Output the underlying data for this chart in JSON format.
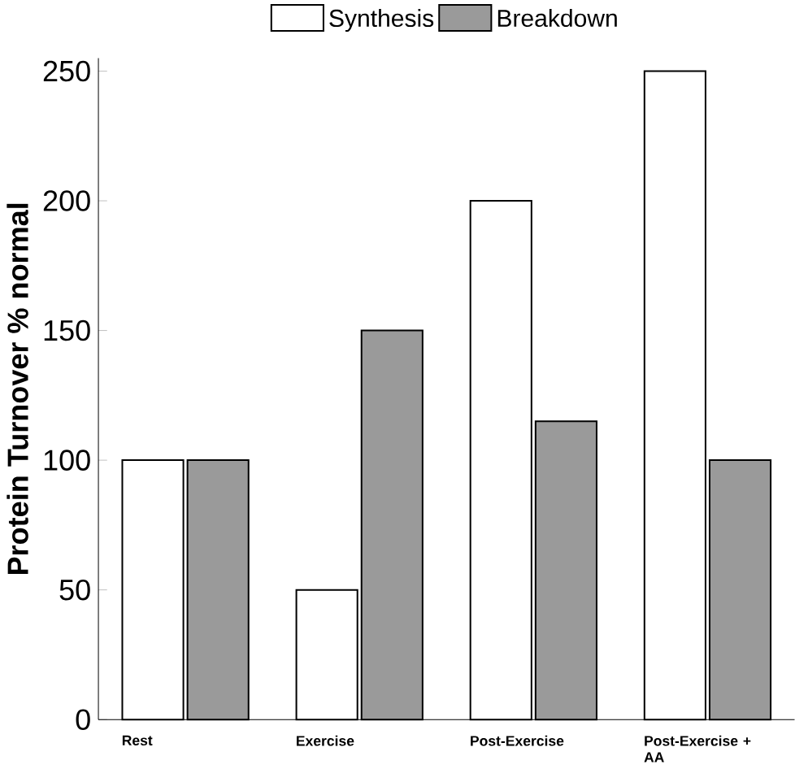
{
  "chart_data": {
    "type": "bar",
    "ylabel": "Protein Turnover % normal",
    "categories": [
      "Rest",
      "Exercise",
      "Post-Exercise",
      "Post-Exercise + AA"
    ],
    "series": [
      {
        "name": "Synthesis",
        "color": "#ffffff",
        "values": [
          100,
          50,
          200,
          250
        ]
      },
      {
        "name": "Breakdown",
        "color": "#9a9a9a",
        "values": [
          100,
          150,
          115,
          100
        ]
      }
    ],
    "ylim": [
      0,
      255
    ],
    "yticks": [
      0,
      50,
      100,
      150,
      200,
      250
    ],
    "grid": false,
    "legend": "top"
  }
}
